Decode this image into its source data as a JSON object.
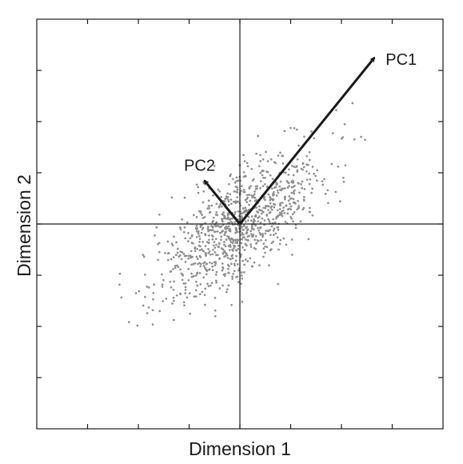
{
  "chart_data": {
    "type": "scatter",
    "title": "",
    "xlabel": "Dimension 1",
    "ylabel": "Dimension 2",
    "xlim": [
      -4,
      4
    ],
    "ylim": [
      -4,
      4
    ],
    "xticks": [
      -3,
      -2,
      -1,
      0,
      1,
      2,
      3
    ],
    "yticks": [
      -3,
      -2,
      -1,
      0,
      1,
      2,
      3
    ],
    "tick_labels_shown": false,
    "origin_axes": true,
    "grid": false,
    "point_color": "#8f8f8f",
    "arrow_color": "#1a1a1a",
    "points": {
      "count": 1000,
      "distribution": "bivariate normal, centered at origin",
      "mean": [
        0,
        0
      ],
      "std_pc1": 1.0,
      "std_pc2": 0.42,
      "pc1_angle_deg": 41
    },
    "vectors": [
      {
        "label": "PC1",
        "from": [
          0,
          0
        ],
        "to": [
          2.65,
          3.25
        ]
      },
      {
        "label": "PC2",
        "from": [
          0,
          0
        ],
        "to": [
          -0.7,
          0.85
        ]
      }
    ]
  }
}
